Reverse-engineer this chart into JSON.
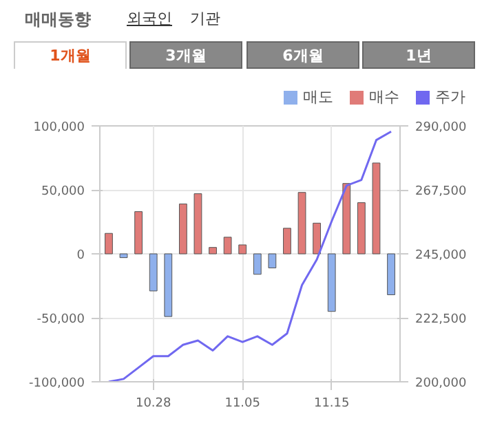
{
  "chart_data": {
    "type": "bar",
    "title": "매매동향",
    "annotations": [
      "외국인",
      "기관",
      "1개월",
      "3개월",
      "6개월",
      "1년"
    ],
    "categories": [
      null,
      null,
      null,
      "10.28",
      null,
      null,
      null,
      null,
      null,
      "11.05",
      null,
      null,
      null,
      null,
      null,
      "11.15",
      null,
      null,
      null,
      null
    ],
    "series": [
      {
        "name": "매도",
        "color": "#8fb0ec",
        "values": [
          null,
          -3000,
          null,
          -29000,
          -49000,
          null,
          null,
          null,
          null,
          null,
          -16000,
          -11000,
          null,
          null,
          null,
          -45000,
          null,
          null,
          null,
          -32000
        ]
      },
      {
        "name": "매수",
        "color": "#e07b78",
        "values": [
          16000,
          null,
          33000,
          null,
          null,
          39000,
          47000,
          5000,
          13000,
          7000,
          null,
          null,
          20000,
          48000,
          24000,
          null,
          55000,
          40000,
          71000,
          null
        ]
      },
      {
        "name": "주가",
        "color": "#7068f0",
        "type": "line",
        "axis": "y2",
        "values": [
          200000,
          201000,
          205000,
          209000,
          209000,
          213000,
          214500,
          211000,
          216000,
          214000,
          216000,
          213000,
          217000,
          234000,
          243000,
          256500,
          269000,
          271000,
          285000,
          288000
        ]
      }
    ],
    "ylim": [
      -100000,
      100000
    ],
    "yticks": [
      {
        "value": -100000,
        "label": "-100,000"
      },
      {
        "value": -50000,
        "label": "-50,000"
      },
      0,
      {
        "value": 50000,
        "label": "50,000"
      },
      {
        "value": 100000,
        "label": "100,000"
      }
    ],
    "y2lim": [
      200000,
      290000
    ],
    "y2ticks": [
      {
        "value": 200000,
        "label": "200,000"
      },
      {
        "value": 222500,
        "label": "222,500"
      },
      {
        "value": 245000,
        "label": "245,000"
      },
      {
        "value": 267500,
        "label": "267,500"
      },
      {
        "value": 290000,
        "label": "290,000"
      }
    ],
    "grid": true,
    "legend": "top right",
    "marker": "none",
    "line_style": "solid"
  }
}
